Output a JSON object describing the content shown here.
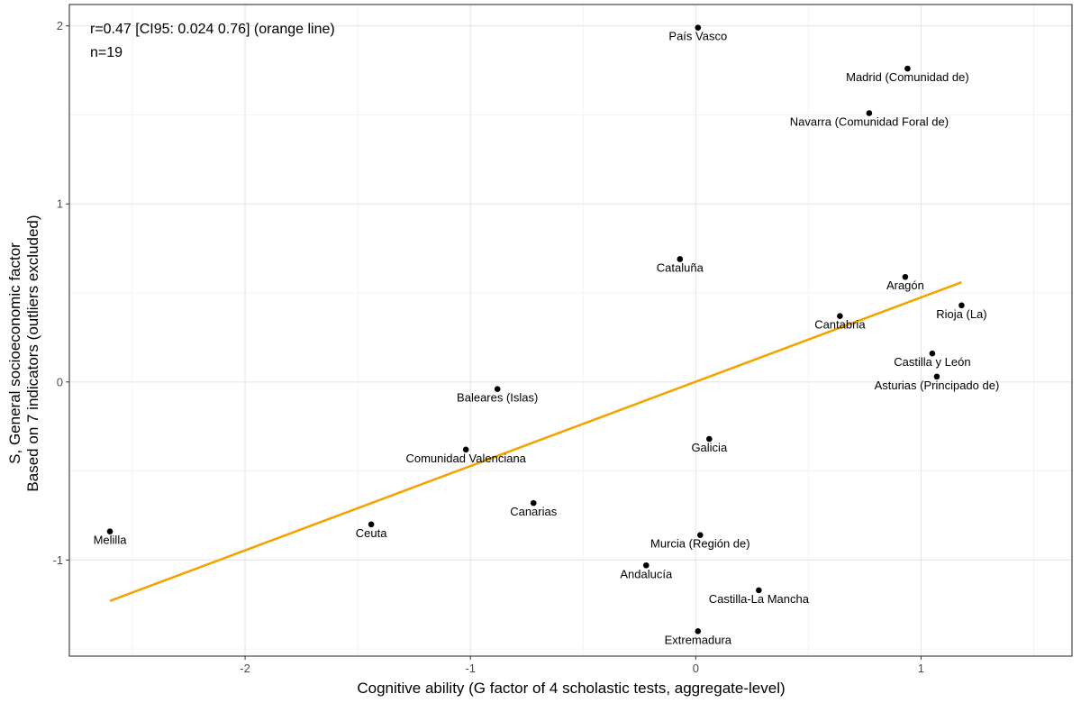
{
  "chart_data": {
    "type": "scatter",
    "xlabel": "Cognitive ability (G factor of 4 scholastic tests, aggregate-level)",
    "ylabel_lines": [
      "S, General socioeconomic factor",
      "Based on 7 indicators (outliers excluded)"
    ],
    "xlim": [
      -2.78,
      1.67
    ],
    "ylim": [
      -1.54,
      2.12
    ],
    "xticks": [
      -2,
      -1,
      0,
      1
    ],
    "xtick_labels": [
      "-2",
      "-1",
      "0",
      "1"
    ],
    "yticks": [
      -1,
      0,
      1,
      2
    ],
    "ytick_labels": [
      "-1",
      "0",
      "1",
      "2"
    ],
    "minor_xticks": [
      -2.5,
      -1.5,
      -0.5,
      0.5,
      1.5
    ],
    "minor_yticks": [
      -1.5,
      -0.5,
      0.5,
      1.5
    ],
    "grid": true,
    "annotations": [
      "r=0.47 [CI95: 0.024 0.76] (orange line)",
      "n=19"
    ],
    "regression_line": {
      "color": "#f5a300",
      "x": [
        -2.6,
        1.18
      ],
      "y": [
        -1.23,
        0.56
      ]
    },
    "points": [
      {
        "label": "País Vasco",
        "x": 0.01,
        "y": 1.99
      },
      {
        "label": "Madrid (Comunidad de)",
        "x": 0.94,
        "y": 1.76
      },
      {
        "label": "Navarra (Comunidad Foral de)",
        "x": 0.77,
        "y": 1.51
      },
      {
        "label": "Cataluña",
        "x": -0.07,
        "y": 0.69
      },
      {
        "label": "Aragón",
        "x": 0.93,
        "y": 0.59
      },
      {
        "label": "Rioja (La)",
        "x": 1.18,
        "y": 0.43
      },
      {
        "label": "Cantabria",
        "x": 0.64,
        "y": 0.37
      },
      {
        "label": "Castilla y León",
        "x": 1.05,
        "y": 0.16
      },
      {
        "label": "Asturias (Principado de)",
        "x": 1.07,
        "y": 0.03
      },
      {
        "label": "Baleares (Islas)",
        "x": -0.88,
        "y": -0.04
      },
      {
        "label": "Galicia",
        "x": 0.06,
        "y": -0.32
      },
      {
        "label": "Comunidad Valenciana",
        "x": -1.02,
        "y": -0.38
      },
      {
        "label": "Canarias",
        "x": -0.72,
        "y": -0.68
      },
      {
        "label": "Ceuta",
        "x": -1.44,
        "y": -0.8
      },
      {
        "label": "Melilla",
        "x": -2.6,
        "y": -0.84
      },
      {
        "label": "Murcia (Región de)",
        "x": 0.02,
        "y": -0.86
      },
      {
        "label": "Andalucía",
        "x": -0.22,
        "y": -1.03
      },
      {
        "label": "Castilla-La Mancha",
        "x": 0.28,
        "y": -1.17
      },
      {
        "label": "Extremadura",
        "x": 0.01,
        "y": -1.4
      }
    ]
  }
}
